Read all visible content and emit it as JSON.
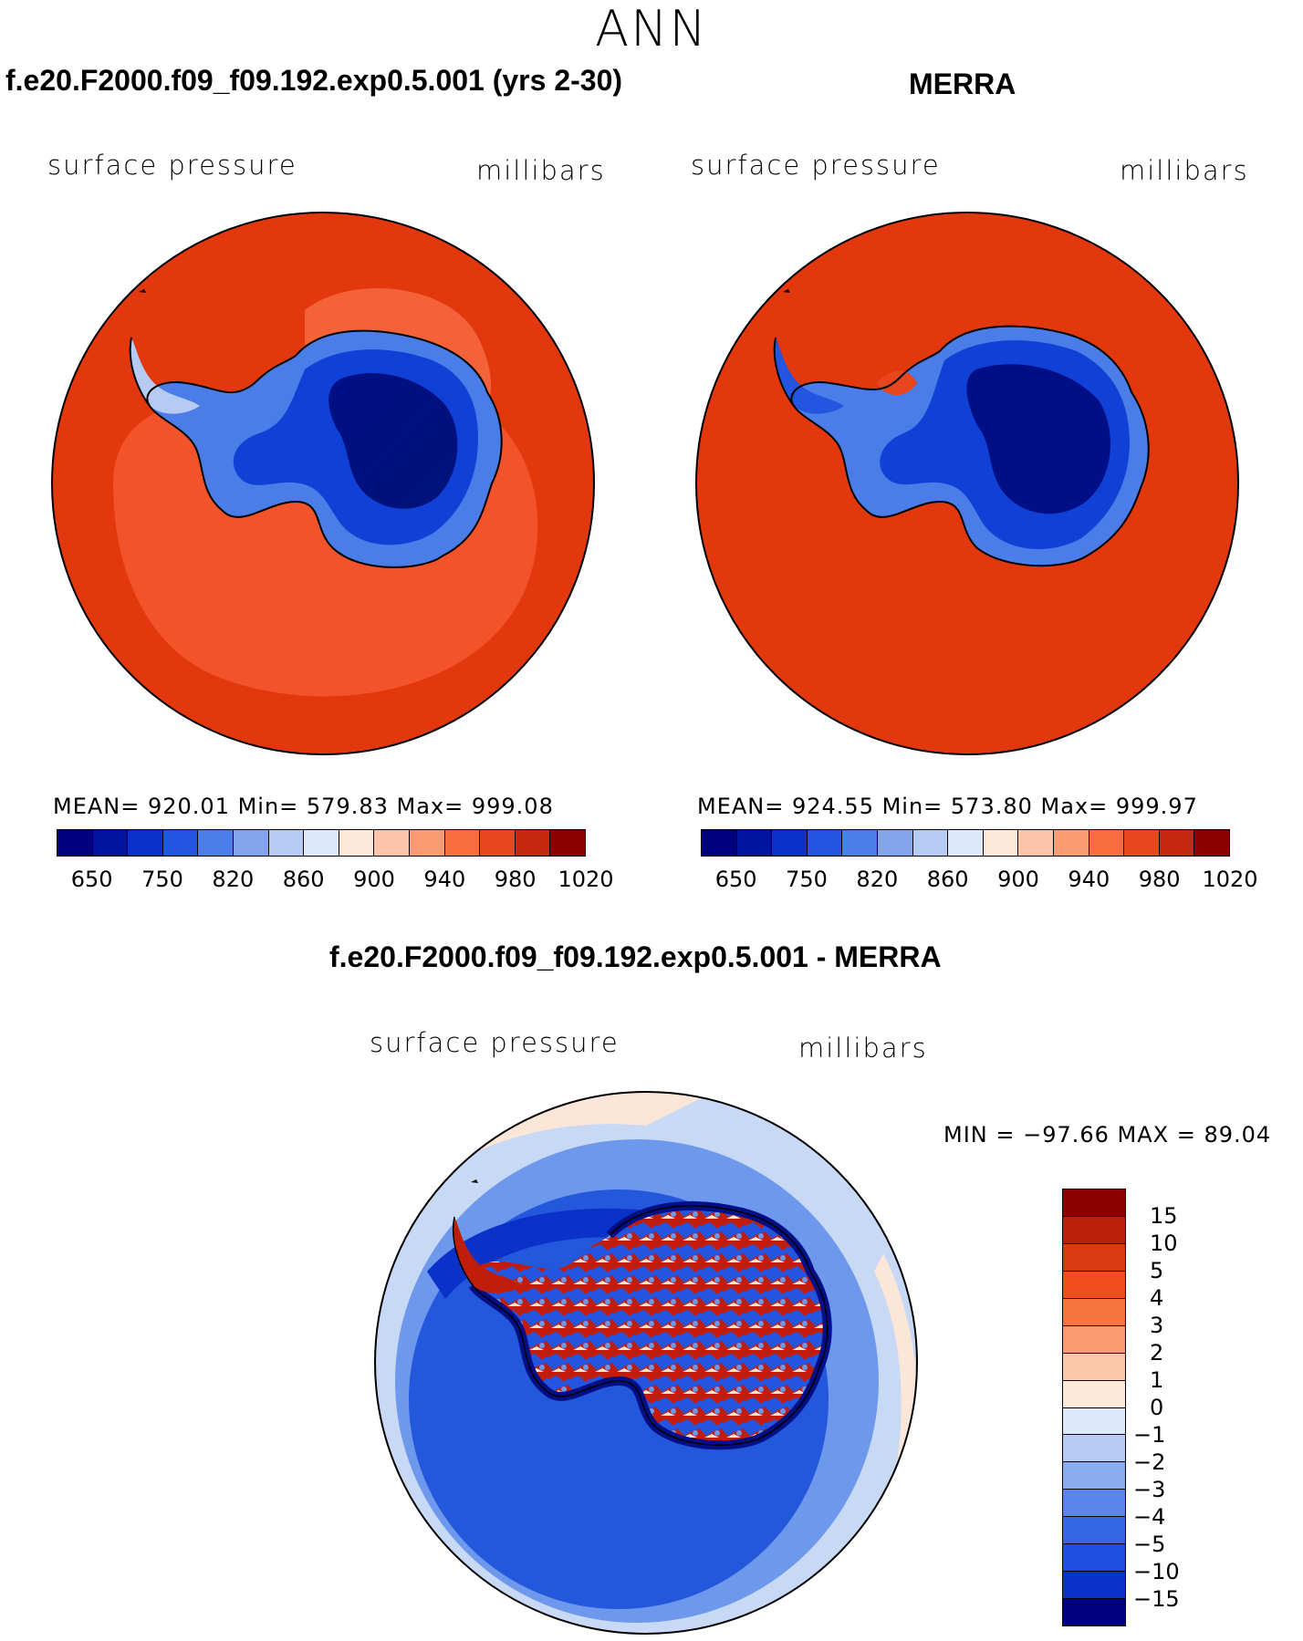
{
  "page_title": "ANN",
  "panels": {
    "model": {
      "title": "f.e20.F2000.f09_f09.192.exp0.5.001 (yrs 2-30)",
      "variable": "surface pressure",
      "units": "millibars",
      "stats": "MEAN= 920.01   Min= 579.83   Max= 999.08"
    },
    "obs": {
      "title": "MERRA",
      "variable": "surface pressure",
      "units": "millibars",
      "stats": "MEAN= 924.55   Min= 573.80   Max= 999.97"
    },
    "diff": {
      "title": "f.e20.F2000.f09_f09.192.exp0.5.001 - MERRA",
      "variable": "surface pressure",
      "units": "millibars",
      "stats": "MIN =  −97.66  MAX =   89.04"
    }
  },
  "colorbar_abs": {
    "colors": [
      "#00007f",
      "#0014a0",
      "#0a32c8",
      "#2355e0",
      "#4b7de8",
      "#82a5ee",
      "#b5cbf3",
      "#dde9fa",
      "#fde7d6",
      "#fcc4a8",
      "#fa9b72",
      "#f76d3f",
      "#e8461e",
      "#c52a0e",
      "#8c0000"
    ],
    "tick_labels": [
      "650",
      "750",
      "820",
      "860",
      "900",
      "940",
      "980",
      "1020"
    ]
  },
  "colorbar_diff": {
    "colors": [
      "#8c0000",
      "#b8200a",
      "#d83a12",
      "#f24d1c",
      "#f6743e",
      "#f89c70",
      "#fbc8a8",
      "#fde9d8",
      "#dde9fa",
      "#b5cbf3",
      "#8aacf0",
      "#5a86eb",
      "#3566e6",
      "#1f4fde",
      "#0a32c8",
      "#00007f"
    ],
    "tick_labels": [
      "15",
      "10",
      "5",
      "4",
      "3",
      "2",
      "1",
      "0",
      "−1",
      "−2",
      "−3",
      "−4",
      "−5",
      "−10",
      "−15"
    ]
  },
  "map_colors": {
    "ocean_model": "#e3380e",
    "ocean_model_band": "#f2532a",
    "ocean_obs": "#e3380e",
    "ice_deep": "#000f85",
    "ice_mid": "#1040d6",
    "ice_edge": "#4b7de8",
    "diff_ocean": "#2458dc",
    "diff_ocean_light": "#6d98ec",
    "diff_outer": "#c8d9f6",
    "diff_red": "#c01e0a",
    "diff_pale": "#fbe6d8"
  }
}
